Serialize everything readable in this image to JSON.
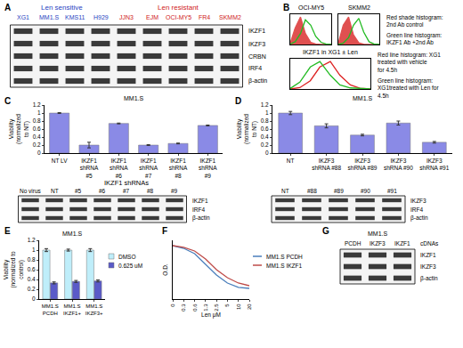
{
  "chart_data": [
    {
      "panel": "B",
      "type": "line",
      "title": "OCI-MY5",
      "log": "x",
      "tick_labels": false,
      "x": [
        1,
        3,
        10,
        30,
        100,
        300,
        1000,
        3000,
        10000
      ],
      "xlim": [
        1,
        10000
      ],
      "ylim": [
        0,
        110
      ],
      "series": [
        {
          "type": "area",
          "color": "#e05050",
          "values": [
            5,
            60,
            100,
            40,
            8,
            2,
            0,
            0,
            0
          ]
        },
        {
          "type": "line",
          "color": "#22bb22",
          "values": [
            2,
            10,
            40,
            90,
            70,
            30,
            8,
            2,
            0
          ]
        }
      ]
    },
    {
      "type": "line",
      "title": "SKMM2",
      "log": "x",
      "tick_labels": false,
      "x": [
        1,
        3,
        10,
        30,
        100,
        300,
        1000,
        3000,
        10000
      ],
      "xlim": [
        1,
        10000
      ],
      "ylim": [
        0,
        110
      ],
      "series": [
        {
          "type": "area",
          "color": "#e05050",
          "values": [
            5,
            70,
            100,
            35,
            6,
            1,
            0,
            0,
            0
          ]
        },
        {
          "type": "line",
          "color": "#22bb22",
          "values": [
            0,
            5,
            25,
            70,
            95,
            45,
            10,
            2,
            0
          ]
        }
      ],
      "annotations": [
        "Red shade histogram: 2nd Ab control",
        "Green line histogram: IKZF1 Ab +2nd Ab"
      ]
    },
    {
      "type": "line",
      "title": "IKZF1 in XG1 ± Len",
      "log": "x",
      "tick_labels": false,
      "x": [
        1,
        3,
        10,
        30,
        100,
        300,
        1000,
        3000,
        10000
      ],
      "xlim": [
        1,
        10000
      ],
      "ylim": [
        0,
        110
      ],
      "series": [
        {
          "type": "line",
          "color": "#dd2222",
          "values": [
            0,
            5,
            30,
            80,
            100,
            50,
            15,
            3,
            0
          ]
        },
        {
          "type": "line",
          "color": "#22bb22",
          "values": [
            2,
            25,
            80,
            100,
            50,
            15,
            4,
            1,
            0
          ]
        }
      ],
      "annotations": [
        "Red line histogram: XG1 treated with vehicle for 4.5h",
        "Green line histogram: XG1treated with Len for 4.5h"
      ]
    },
    {
      "panel": "C",
      "type": "bar",
      "title": "MM1.S",
      "y_label": "Viability (normalized to NT)",
      "categories": [
        "NT LV",
        "IKZF1 shRNA #5",
        "IKZF1 shRNA #6",
        "IKZF1 shRNA #7",
        "IKZF1 shRNA #8",
        "IKZF1 shRNA #9"
      ],
      "values": [
        1.0,
        0.2,
        0.74,
        0.2,
        0.24,
        0.69
      ],
      "errors": [
        0.01,
        0.07,
        0.01,
        0.01,
        0.01,
        0.01
      ],
      "color": "#8a8ae6",
      "ylim": [
        0,
        1.2
      ],
      "yticks": [
        0,
        0.2,
        0.4,
        0.6,
        0.8,
        1,
        1.2
      ],
      "grid": false
    },
    {
      "panel": "D",
      "type": "bar",
      "title": "MM1.S",
      "y_label": "Viability (normalized to NT)",
      "categories": [
        "NT",
        "IKZF3 shRNA #88",
        "IKZF3 shRNA #89",
        "IKZF3 shRNA #90",
        "IKZF3 shRNA #91"
      ],
      "values": [
        1.0,
        0.68,
        0.45,
        0.75,
        0.27
      ],
      "errors": [
        0.04,
        0.05,
        0.02,
        0.05,
        0.02
      ],
      "color": "#8a8ae6",
      "ylim": [
        0,
        1.2
      ],
      "yticks": [
        0,
        0.2,
        0.4,
        0.6,
        0.8,
        1,
        1.2
      ],
      "grid": false
    },
    {
      "panel": "E",
      "type": "bar",
      "title": "MM1.S",
      "y_label": "Viability (normalized to control)",
      "categories": [
        "MM1.S PCDH",
        "MM1.S IKZF1+",
        "MM1.S IKZF3+"
      ],
      "series": [
        {
          "name": "DMSO",
          "color": "#bfeefa",
          "values": [
            1,
            1,
            1
          ],
          "errors": [
            0.03,
            0.02,
            0.03
          ]
        },
        {
          "name": "0.625 uM",
          "color": "#5a5ac8",
          "values": [
            0.33,
            0.36,
            0.37
          ],
          "errors": [
            0.02,
            0.02,
            0.02
          ]
        }
      ],
      "ylim": [
        0,
        1.2
      ],
      "yticks": [
        0,
        0.2,
        0.4,
        0.6,
        0.8,
        1,
        1.2
      ],
      "grid": false,
      "legend": "right"
    },
    {
      "panel": "F",
      "type": "line",
      "y_label": "O.D.",
      "x_label": "Len μM",
      "categories": [
        "0",
        "0.3",
        "0.6",
        "1.3",
        "2.5",
        "5",
        "10",
        "20"
      ],
      "series": [
        {
          "name": "MM1.S PCDH",
          "color": "#4a7ebb",
          "values": [
            1.0,
            0.95,
            0.85,
            0.65,
            0.45,
            0.3,
            0.22,
            0.2
          ]
        },
        {
          "name": "MM1.S IKZF1",
          "color": "#be4b48",
          "values": [
            1.0,
            0.97,
            0.9,
            0.75,
            0.55,
            0.4,
            0.3,
            0.25
          ]
        }
      ],
      "ylim": [
        0,
        1.1
      ],
      "tick_labels": "x",
      "grid": false,
      "legend": "right"
    }
  ],
  "blots": [
    {
      "panel": "A",
      "groups": [
        {
          "label": "Len sensitive",
          "color": "#1f3fbf",
          "lanes": [
            "XG1",
            "MM1.S",
            "KMS11",
            "H929"
          ]
        },
        {
          "label": "Len resistant",
          "color": "#d02020",
          "lanes": [
            "JJN3",
            "EJM",
            "OCI-MY5",
            "FR4",
            "SKMM2"
          ]
        }
      ],
      "rows": [
        "IKZF1",
        "IKZF3",
        "CRBN",
        "IRF4",
        "β-actin"
      ]
    },
    {
      "groups": [
        {
          "lanes": [
            "No virus",
            "NT"
          ]
        },
        {
          "label": "IKZF1 shRNAs",
          "lanes": [
            "#5",
            "#6",
            "#7",
            "#8",
            "#9"
          ]
        }
      ],
      "rows": [
        "IKZF1",
        "IRF4",
        "β-actin"
      ]
    },
    {
      "groups": [
        {
          "lanes": [
            "NT",
            "#88",
            "#89",
            "#90",
            "#91"
          ]
        }
      ],
      "rows": [
        "IKZF3",
        "IRF4",
        "β-actin"
      ]
    },
    {
      "panel": "G",
      "title": "MM1.S",
      "groups": [
        {
          "lanes": [
            "PCDH",
            "IKZF3",
            "IKZF1"
          ]
        }
      ],
      "lane_note": "cDNAs",
      "rows": [
        "IKZF1",
        "IKZF3",
        "β-actin"
      ]
    }
  ]
}
